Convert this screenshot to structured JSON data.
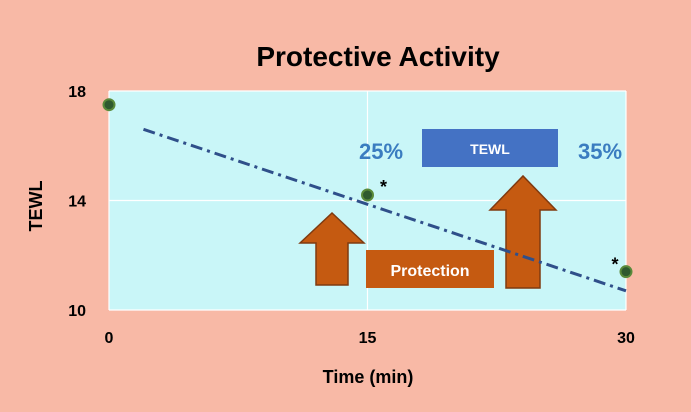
{
  "chart_data": {
    "type": "scatter",
    "title": "Protective Activity",
    "xlabel": "Time (min)",
    "ylabel": "TEWL",
    "x_ticks": [
      0,
      15,
      30
    ],
    "y_ticks": [
      10,
      14,
      18
    ],
    "xlim": [
      0,
      30
    ],
    "ylim": [
      10,
      18
    ],
    "grid": true,
    "series": [
      {
        "values": [
          {
            "x": 0,
            "y": 17.5
          },
          {
            "x": 15,
            "y": 14.2
          },
          {
            "x": 30,
            "y": 11.4
          }
        ]
      }
    ],
    "trendline": {
      "style": "dash-dot",
      "from": {
        "x": 2,
        "y": 16.6
      },
      "to": {
        "x": 30,
        "y": 10.7
      }
    },
    "significance_marker": "*",
    "annotations": {
      "pct_left": "25%",
      "pct_right": "35%",
      "tewl_box": "TEWL",
      "protection_box": "Protection"
    },
    "colors": {
      "page_background": "#f8b9a6",
      "plot_background": "#c9f6f8",
      "grid": "#ffffff",
      "trendline": "#2f4f8a",
      "marker_fill": "#2f5a2f",
      "marker_stroke": "#5a8a3a",
      "arrow_fill": "#c55a11",
      "arrow_stroke": "#7f3a10",
      "tewl_box": "#4472c4",
      "annotation_text": "#3a7cc0",
      "box_text": "#ffffff",
      "axis_text": "#000000"
    }
  }
}
